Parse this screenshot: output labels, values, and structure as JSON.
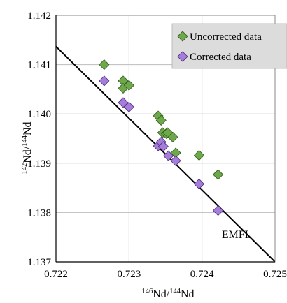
{
  "chart_data": {
    "type": "scatter",
    "xlabel": "146Nd/144Nd",
    "xlabel_parts": {
      "sup1": "146",
      "base1": "Nd/",
      "sup2": "144",
      "base2": "Nd"
    },
    "ylabel": "142Nd/144Nd",
    "ylabel_parts": {
      "sup1": "142",
      "base1": "Nd/",
      "sup2": "144",
      "base2": "Nd"
    },
    "xlim": [
      0.722,
      0.725
    ],
    "ylim": [
      1.137,
      1.142
    ],
    "x_ticks": [
      "0.722",
      "0.723",
      "0.724",
      "0.725"
    ],
    "y_ticks": [
      "1.137",
      "1.138",
      "1.139",
      "1.140",
      "1.141",
      "1.142"
    ],
    "grid": true,
    "legend_position": "top-right",
    "series": [
      {
        "name": "Uncorrected data",
        "color": "#6fa84a",
        "marker": "diamond",
        "points": [
          [
            0.72266,
            1.141
          ],
          [
            0.72292,
            1.14067
          ],
          [
            0.72292,
            1.14052
          ],
          [
            0.723,
            1.14058
          ],
          [
            0.7234,
            1.13996
          ],
          [
            0.72344,
            1.13987
          ],
          [
            0.72346,
            1.13962
          ],
          [
            0.72351,
            1.1396
          ],
          [
            0.72353,
            1.13962
          ],
          [
            0.7236,
            1.13953
          ],
          [
            0.72364,
            1.13921
          ],
          [
            0.72396,
            1.13916
          ],
          [
            0.72422,
            1.13877
          ]
        ]
      },
      {
        "name": "Corrected data",
        "color": "#a77ddb",
        "marker": "diamond",
        "points": [
          [
            0.72266,
            1.14067
          ],
          [
            0.72292,
            1.14023
          ],
          [
            0.723,
            1.14014
          ],
          [
            0.7234,
            1.13935
          ],
          [
            0.72344,
            1.13943
          ],
          [
            0.72347,
            1.13934
          ],
          [
            0.72354,
            1.13915
          ],
          [
            0.72364,
            1.13905
          ],
          [
            0.72396,
            1.13858
          ],
          [
            0.72422,
            1.13804
          ]
        ]
      }
    ],
    "lines": [
      {
        "label": "EMFL",
        "from": [
          0.7218,
          1.14166
        ],
        "to": [
          0.725,
          1.137
        ]
      }
    ],
    "annotations": [
      {
        "text": "EMFL",
        "x": 0.72427,
        "y": 1.13748
      }
    ]
  }
}
